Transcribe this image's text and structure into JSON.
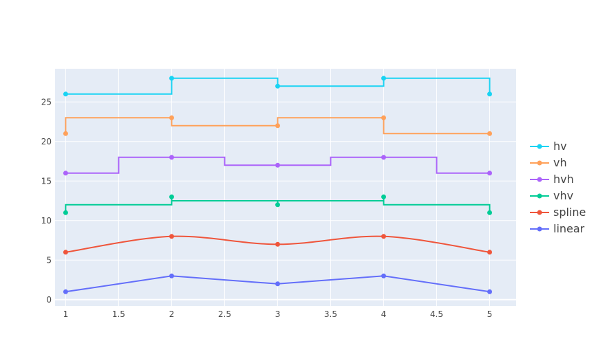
{
  "chart_data": {
    "type": "line",
    "x": [
      1,
      2,
      3,
      4,
      5
    ],
    "xlim": [
      0.9,
      5.25
    ],
    "ylim": [
      -0.8,
      29.2
    ],
    "x_ticks": [
      1,
      1.5,
      2,
      2.5,
      3,
      3.5,
      4,
      4.5,
      5
    ],
    "y_ticks": [
      0,
      5,
      10,
      15,
      20,
      25
    ],
    "grid": true,
    "legend_position": "right",
    "series": [
      {
        "name": "linear",
        "shape": "linear",
        "color": "#636efa",
        "values": [
          1,
          3,
          2,
          3,
          1
        ]
      },
      {
        "name": "spline",
        "shape": "spline",
        "color": "#ef553b",
        "values": [
          6,
          8,
          7,
          8,
          6
        ]
      },
      {
        "name": "vhv",
        "shape": "vhv",
        "color": "#00cc96",
        "values": [
          11,
          13,
          12,
          13,
          11
        ]
      },
      {
        "name": "hvh",
        "shape": "hvh",
        "color": "#ab63fa",
        "values": [
          16,
          18,
          17,
          18,
          16
        ]
      },
      {
        "name": "vh",
        "shape": "vh",
        "color": "#ffa15a",
        "values": [
          21,
          23,
          22,
          23,
          21
        ]
      },
      {
        "name": "hv",
        "shape": "hv",
        "color": "#19d3f3",
        "values": [
          26,
          28,
          27,
          28,
          26
        ]
      }
    ]
  }
}
